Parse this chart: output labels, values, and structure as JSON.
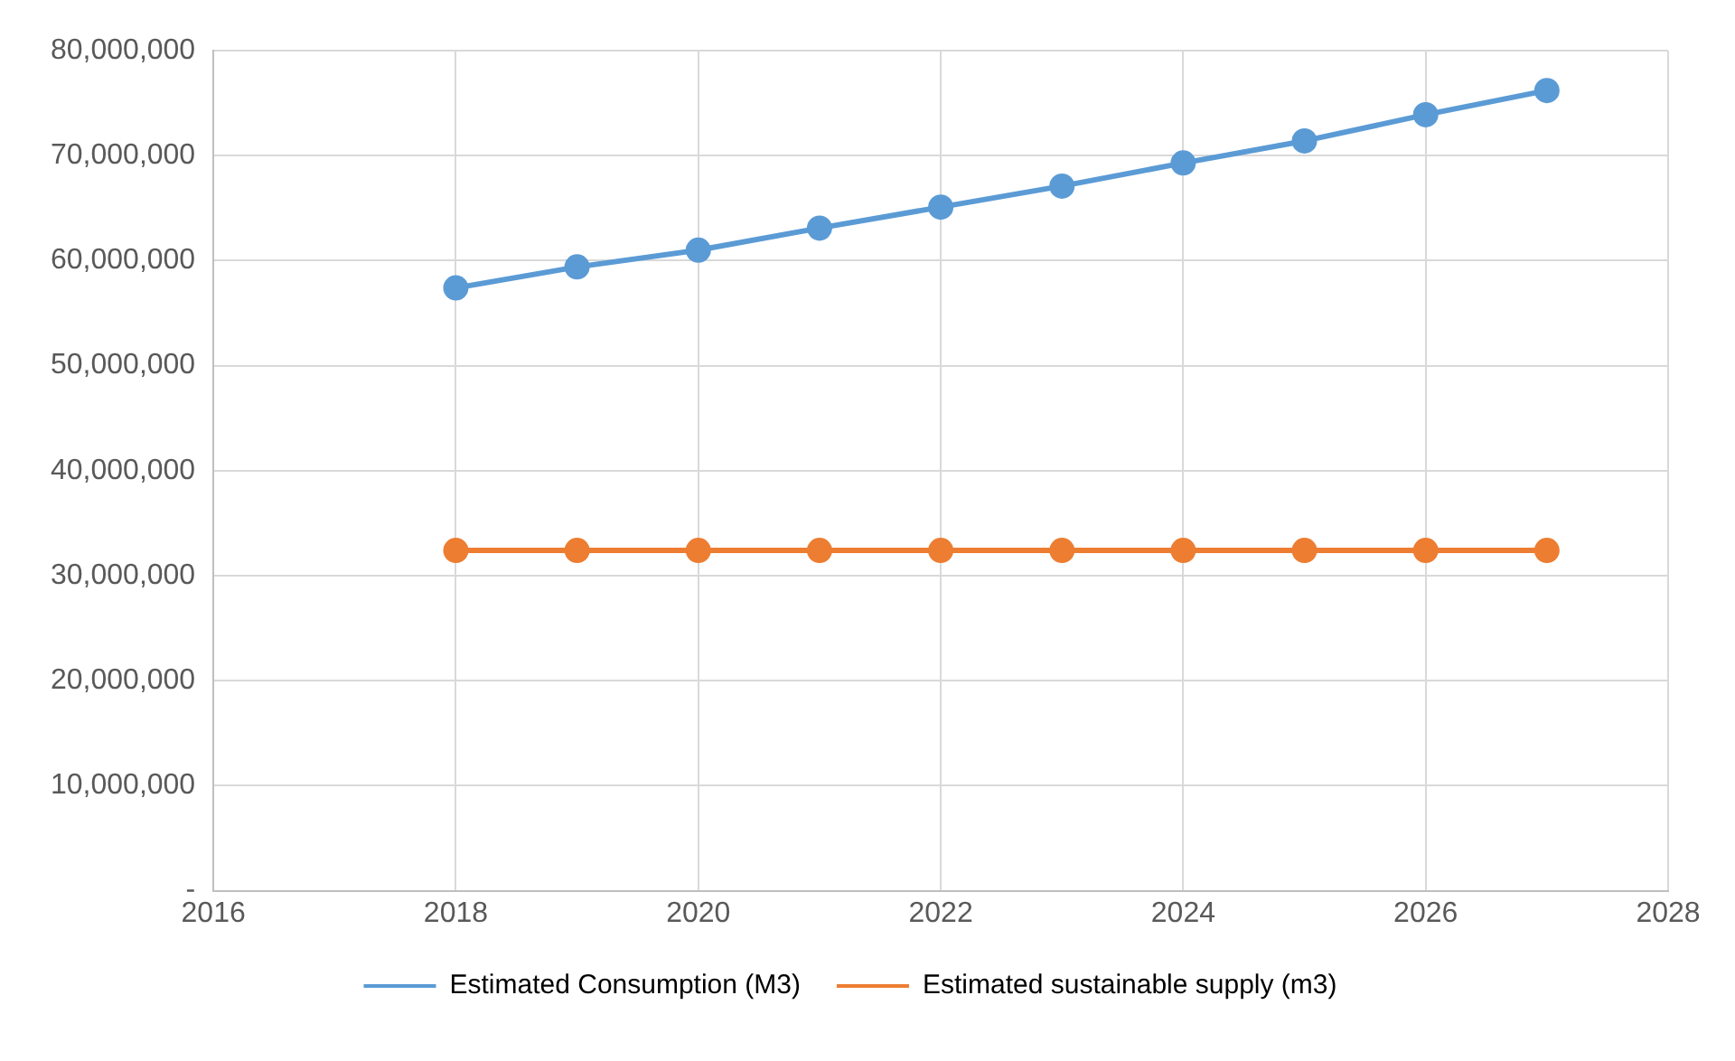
{
  "chart_data": {
    "type": "line",
    "x": [
      2018,
      2019,
      2020,
      2021,
      2022,
      2023,
      2024,
      2025,
      2026,
      2027
    ],
    "series": [
      {
        "name": "Estimated Consumption (M3)",
        "color": "#5b9bd5",
        "values": [
          57400000,
          59400000,
          61000000,
          63100000,
          65100000,
          67100000,
          69300000,
          71400000,
          73900000,
          76200000
        ]
      },
      {
        "name": "Estimated sustainable supply (m3)",
        "color": "#ed7d31",
        "values": [
          32400000,
          32400000,
          32400000,
          32400000,
          32400000,
          32400000,
          32400000,
          32400000,
          32400000,
          32400000
        ]
      }
    ],
    "xlim": [
      2016,
      2028
    ],
    "xticks": [
      2016,
      2018,
      2020,
      2022,
      2024,
      2026,
      2028
    ],
    "ylim": [
      0,
      80000000
    ],
    "yticks": [
      {
        "value": 0,
        "label": "-"
      },
      {
        "value": 10000000,
        "label": "10,000,000"
      },
      {
        "value": 20000000,
        "label": "20,000,000"
      },
      {
        "value": 30000000,
        "label": "30,000,000"
      },
      {
        "value": 40000000,
        "label": "40,000,000"
      },
      {
        "value": 50000000,
        "label": "50,000,000"
      },
      {
        "value": 60000000,
        "label": "60,000,000"
      },
      {
        "value": 70000000,
        "label": "70,000,000"
      },
      {
        "value": 80000000,
        "label": "80,000,000"
      }
    ],
    "grid": true,
    "legend": "bottom",
    "marker": "circle",
    "line_style": "solid"
  }
}
